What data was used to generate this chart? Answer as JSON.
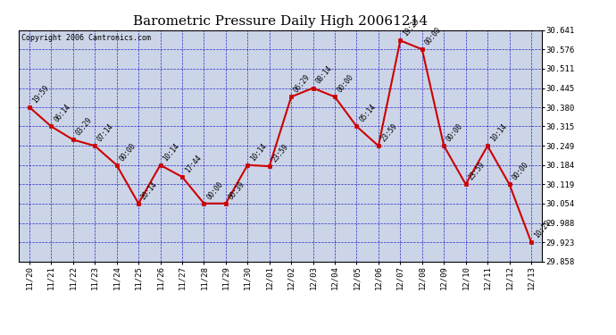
{
  "title": "Barometric Pressure Daily High 20061214",
  "copyright": "Copyright 2006 Cantronics.com",
  "fig_bg_color": "#ffffff",
  "plot_bg_color": "#ccd5e8",
  "line_color": "#cc0000",
  "marker_color": "#cc0000",
  "grid_color": "#0000bb",
  "x_labels": [
    "11/20",
    "11/21",
    "11/22",
    "11/23",
    "11/24",
    "11/25",
    "11/26",
    "11/27",
    "11/28",
    "11/29",
    "11/30",
    "12/01",
    "12/02",
    "12/03",
    "12/04",
    "12/05",
    "12/06",
    "12/07",
    "12/08",
    "12/09",
    "12/10",
    "12/11",
    "12/12",
    "12/13"
  ],
  "y_values": [
    30.38,
    30.315,
    30.27,
    30.249,
    30.184,
    30.054,
    30.184,
    30.144,
    30.054,
    30.054,
    30.184,
    30.18,
    30.415,
    30.445,
    30.415,
    30.315,
    30.249,
    30.606,
    30.576,
    30.249,
    30.119,
    30.249,
    30.119,
    29.923
  ],
  "time_labels": [
    "19:59",
    "06:14",
    "03:29",
    "07:14",
    "00:00",
    "20:14",
    "10:14",
    "17:44",
    "00:00",
    "00:39",
    "10:14",
    "23:59",
    "06:29",
    "08:14",
    "00:00",
    "05:14",
    "23:59",
    "19:29",
    "00:00",
    "00:00",
    "23:59",
    "10:14",
    "00:00",
    "10:29"
  ],
  "ylim_min": 29.858,
  "ylim_max": 30.641,
  "yticks": [
    29.858,
    29.923,
    29.988,
    30.054,
    30.119,
    30.184,
    30.249,
    30.315,
    30.38,
    30.445,
    30.511,
    30.576,
    30.641
  ],
  "title_fontsize": 11,
  "tick_fontsize": 6.5,
  "time_label_fontsize": 5.5,
  "copyright_fontsize": 6
}
